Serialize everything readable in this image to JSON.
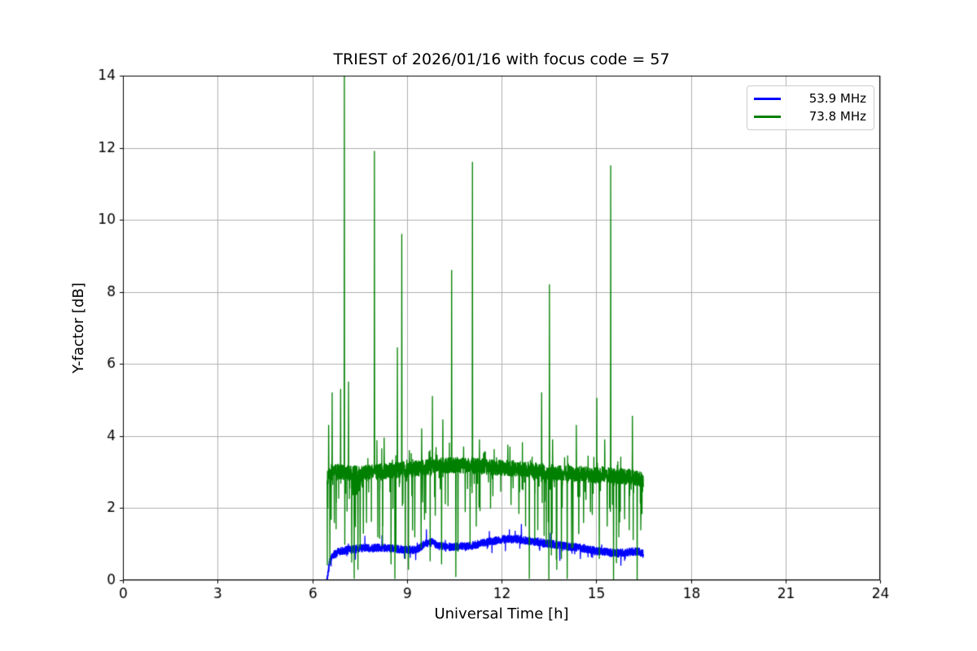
{
  "chart_data": {
    "type": "line",
    "title": "TRIEST of 2026/01/16 with focus code = 57",
    "xlabel": "Universal Time [h]",
    "ylabel": "Y-factor [dB]",
    "xlim": [
      0,
      24
    ],
    "ylim": [
      0,
      14
    ],
    "xticks": [
      0,
      3,
      6,
      9,
      12,
      15,
      18,
      21,
      24
    ],
    "yticks": [
      0,
      2,
      4,
      6,
      8,
      10,
      12,
      14
    ],
    "grid": true,
    "grid_color": "#b0b0b0",
    "axis_color": "#000000",
    "legend_position": "upper right",
    "noise_seed": 42,
    "n_points": 2800,
    "series": [
      {
        "name": "53.9 MHz",
        "color": "#0000ff",
        "time_range": [
          6.46,
          16.5
        ],
        "baseline": [
          [
            6.46,
            0.0
          ],
          [
            6.5,
            0.2
          ],
          [
            6.55,
            0.5
          ],
          [
            6.65,
            0.68
          ],
          [
            6.8,
            0.78
          ],
          [
            7.0,
            0.82
          ],
          [
            7.5,
            0.88
          ],
          [
            8.0,
            0.9
          ],
          [
            8.5,
            0.88
          ],
          [
            9.0,
            0.85
          ],
          [
            9.3,
            0.83
          ],
          [
            9.55,
            1.0
          ],
          [
            9.8,
            1.05
          ],
          [
            10.0,
            0.95
          ],
          [
            10.5,
            0.92
          ],
          [
            11.0,
            0.95
          ],
          [
            11.5,
            1.05
          ],
          [
            12.0,
            1.13
          ],
          [
            12.5,
            1.15
          ],
          [
            12.8,
            1.1
          ],
          [
            13.2,
            1.05
          ],
          [
            13.6,
            1.0
          ],
          [
            14.0,
            0.95
          ],
          [
            14.5,
            0.9
          ],
          [
            15.0,
            0.82
          ],
          [
            15.4,
            0.77
          ],
          [
            15.7,
            0.75
          ],
          [
            16.0,
            0.78
          ],
          [
            16.3,
            0.8
          ],
          [
            16.5,
            0.74
          ]
        ],
        "noise_amp": 0.11,
        "dip_depth": 0.35,
        "dip_prob_profile": [
          [
            6.46,
            0.02
          ],
          [
            10.0,
            0.02
          ],
          [
            13.5,
            0.04
          ],
          [
            16.5,
            0.04
          ]
        ],
        "bump_prob": 0.015,
        "bump_height": 0.35,
        "spikes_up": [
          [
            9.62,
            1.4
          ],
          [
            12.63,
            1.55
          ]
        ],
        "spikes_down": [
          [
            13.85,
            0.55
          ],
          [
            14.5,
            0.6
          ],
          [
            15.9,
            0.55
          ]
        ]
      },
      {
        "name": "73.8 MHz",
        "color": "#008000",
        "time_range": [
          6.47,
          16.5
        ],
        "baseline": [
          [
            6.47,
            2.8
          ],
          [
            6.6,
            3.0
          ],
          [
            7.0,
            3.0
          ],
          [
            7.5,
            2.95
          ],
          [
            8.0,
            3.0
          ],
          [
            8.5,
            3.05
          ],
          [
            9.0,
            3.08
          ],
          [
            9.5,
            3.12
          ],
          [
            10.0,
            3.18
          ],
          [
            10.5,
            3.2
          ],
          [
            11.0,
            3.18
          ],
          [
            11.5,
            3.15
          ],
          [
            12.0,
            3.12
          ],
          [
            12.5,
            3.1
          ],
          [
            13.0,
            3.05
          ],
          [
            13.5,
            3.0
          ],
          [
            14.0,
            2.97
          ],
          [
            14.5,
            2.95
          ],
          [
            15.0,
            2.92
          ],
          [
            15.5,
            2.9
          ],
          [
            16.0,
            2.87
          ],
          [
            16.3,
            2.85
          ],
          [
            16.5,
            2.78
          ]
        ],
        "noise_amp": 0.22,
        "dip_depth": 2.8,
        "dip_prob_profile": [
          [
            6.47,
            0.05
          ],
          [
            7.0,
            0.07
          ],
          [
            7.3,
            0.1
          ],
          [
            7.7,
            0.08
          ],
          [
            8.2,
            0.05
          ],
          [
            8.6,
            0.07
          ],
          [
            9.1,
            0.06
          ],
          [
            9.8,
            0.04
          ],
          [
            10.5,
            0.04
          ],
          [
            11.0,
            0.03
          ],
          [
            11.8,
            0.025
          ],
          [
            12.5,
            0.035
          ],
          [
            12.9,
            0.05
          ],
          [
            13.4,
            0.1
          ],
          [
            14.2,
            0.09
          ],
          [
            14.8,
            0.05
          ],
          [
            15.3,
            0.07
          ],
          [
            15.8,
            0.08
          ],
          [
            16.5,
            0.08
          ]
        ],
        "bump_prob": 0.03,
        "bump_height": 0.8,
        "spikes_up": [
          [
            6.52,
            4.3
          ],
          [
            6.63,
            5.2
          ],
          [
            6.9,
            5.3
          ],
          [
            7.02,
            14.6
          ],
          [
            7.15,
            5.5
          ],
          [
            7.97,
            11.9
          ],
          [
            8.28,
            3.95
          ],
          [
            8.7,
            6.45
          ],
          [
            8.84,
            9.6
          ],
          [
            9.08,
            3.6
          ],
          [
            9.47,
            4.2
          ],
          [
            9.73,
            3.6
          ],
          [
            9.81,
            5.1
          ],
          [
            10.14,
            4.45
          ],
          [
            10.42,
            8.6
          ],
          [
            10.8,
            3.7
          ],
          [
            11.08,
            11.6
          ],
          [
            11.3,
            3.9
          ],
          [
            12.2,
            3.75
          ],
          [
            13.27,
            5.2
          ],
          [
            13.52,
            8.2
          ],
          [
            13.62,
            3.9
          ],
          [
            14.0,
            3.4
          ],
          [
            14.37,
            4.3
          ],
          [
            15.02,
            5.05
          ],
          [
            15.27,
            3.9
          ],
          [
            15.46,
            11.5
          ],
          [
            16.15,
            4.55
          ]
        ],
        "spikes_down": [
          [
            6.56,
            0.45
          ],
          [
            6.7,
            1.6
          ],
          [
            7.25,
            0.5
          ],
          [
            7.33,
            0.05
          ],
          [
            7.45,
            0.3
          ],
          [
            7.52,
            0.9
          ],
          [
            7.62,
            1.3
          ],
          [
            7.72,
            1.6
          ],
          [
            8.08,
            1.2
          ],
          [
            8.5,
            0.45
          ],
          [
            8.62,
            0.05
          ],
          [
            8.95,
            0.6
          ],
          [
            9.05,
            0.3
          ],
          [
            9.25,
            1.2
          ],
          [
            9.45,
            0.9
          ],
          [
            9.9,
            1.8
          ],
          [
            10.1,
            0.45
          ],
          [
            10.55,
            0.1
          ],
          [
            10.62,
            0.8
          ],
          [
            10.85,
            1.9
          ],
          [
            11.2,
            1.5
          ],
          [
            11.65,
            2.0
          ],
          [
            12.3,
            2.1
          ],
          [
            12.55,
            1.85
          ],
          [
            12.88,
            0.05
          ],
          [
            13.15,
            1.4
          ],
          [
            13.42,
            1.0
          ],
          [
            13.5,
            0.0
          ],
          [
            13.58,
            0.7
          ],
          [
            13.75,
            0.3
          ],
          [
            13.9,
            0.6
          ],
          [
            14.08,
            0.05
          ],
          [
            14.22,
            0.9
          ],
          [
            14.45,
            1.3
          ],
          [
            14.6,
            1.6
          ],
          [
            14.82,
            1.9
          ],
          [
            15.1,
            0.6
          ],
          [
            15.35,
            1.5
          ],
          [
            15.55,
            0.0
          ],
          [
            15.72,
            1.2
          ],
          [
            15.9,
            1.7
          ],
          [
            16.05,
            1.4
          ],
          [
            16.3,
            0.0
          ],
          [
            16.42,
            1.8
          ]
        ]
      }
    ]
  }
}
